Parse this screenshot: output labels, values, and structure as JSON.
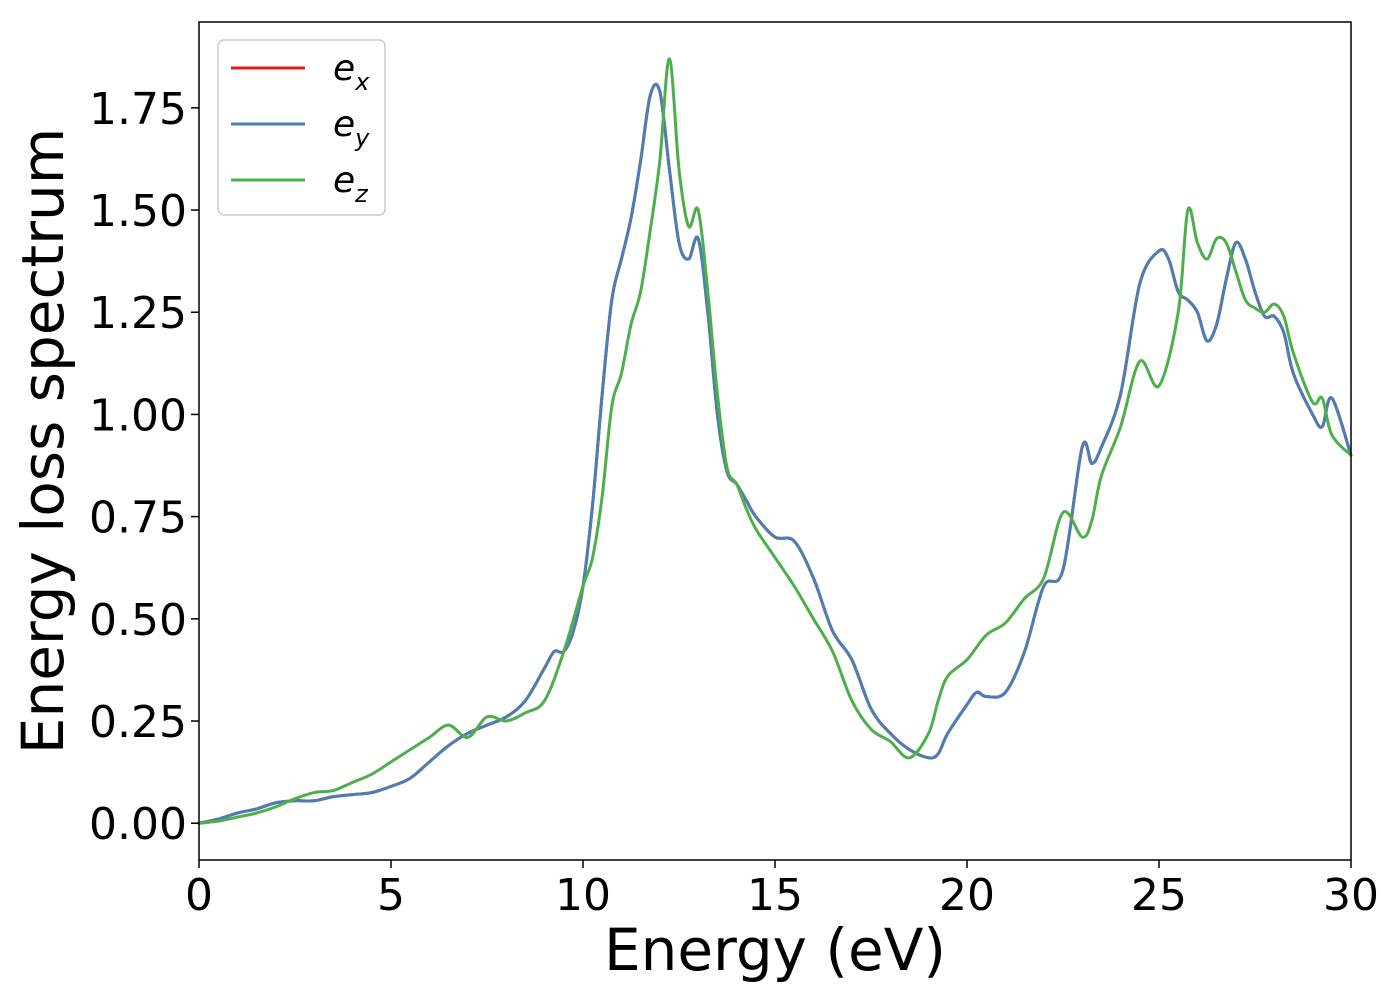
{
  "chart_data": {
    "type": "line",
    "xlabel": "Energy (eV)",
    "ylabel": "Energy loss spectrum",
    "xlim": [
      0,
      30
    ],
    "ylim": [
      -0.09,
      1.96
    ],
    "xticks": [
      0,
      5,
      10,
      15,
      20,
      25,
      30
    ],
    "xtick_labels": [
      "0",
      "5",
      "10",
      "15",
      "20",
      "25",
      "30"
    ],
    "yticks": [
      0.0,
      0.25,
      0.5,
      0.75,
      1.0,
      1.25,
      1.5,
      1.75
    ],
    "ytick_labels": [
      "0.00",
      "0.25",
      "0.50",
      "0.75",
      "1.00",
      "1.25",
      "1.50",
      "1.75"
    ],
    "grid": false,
    "legend_position": "top-left",
    "series": [
      {
        "name": "e",
        "subscript": "x",
        "color": "#e41a1c",
        "x": [
          0,
          0.5,
          1,
          1.5,
          2,
          2.5,
          3,
          3.5,
          4,
          4.5,
          5,
          5.5,
          6,
          6.5,
          7,
          7.5,
          8,
          8.5,
          9,
          9.25,
          9.5,
          9.75,
          10,
          10.25,
          10.5,
          10.75,
          11,
          11.25,
          11.5,
          11.75,
          12,
          12.25,
          12.5,
          12.75,
          13,
          13.25,
          13.5,
          13.75,
          14,
          14.25,
          14.5,
          15,
          15.5,
          16,
          16.5,
          17,
          17.5,
          18,
          18.5,
          19,
          19.25,
          19.5,
          20,
          20.25,
          20.5,
          21,
          21.5,
          22,
          22.5,
          23,
          23.25,
          23.5,
          24,
          24.5,
          25,
          25.25,
          25.5,
          25.75,
          26,
          26.25,
          26.5,
          26.75,
          27,
          27.25,
          27.5,
          27.75,
          28,
          28.25,
          28.5,
          29,
          29.25,
          29.5,
          30
        ],
        "values": [
          0.0,
          0.01,
          0.025,
          0.035,
          0.05,
          0.055,
          0.055,
          0.065,
          0.07,
          0.075,
          0.09,
          0.11,
          0.15,
          0.19,
          0.22,
          0.24,
          0.26,
          0.3,
          0.38,
          0.42,
          0.42,
          0.47,
          0.58,
          0.78,
          1.05,
          1.28,
          1.38,
          1.48,
          1.62,
          1.78,
          1.79,
          1.6,
          1.42,
          1.38,
          1.43,
          1.25,
          1.0,
          0.86,
          0.83,
          0.79,
          0.75,
          0.7,
          0.69,
          0.6,
          0.47,
          0.4,
          0.28,
          0.22,
          0.18,
          0.16,
          0.17,
          0.22,
          0.29,
          0.32,
          0.31,
          0.32,
          0.42,
          0.58,
          0.62,
          0.92,
          0.88,
          0.92,
          1.05,
          1.32,
          1.4,
          1.38,
          1.3,
          1.28,
          1.25,
          1.18,
          1.22,
          1.33,
          1.42,
          1.38,
          1.3,
          1.24,
          1.24,
          1.2,
          1.1,
          1.0,
          0.97,
          1.04,
          0.9
        ]
      },
      {
        "name": "e",
        "subscript": "y",
        "color": "#4a7fb5",
        "x": [
          0,
          0.5,
          1,
          1.5,
          2,
          2.5,
          3,
          3.5,
          4,
          4.5,
          5,
          5.5,
          6,
          6.5,
          7,
          7.5,
          8,
          8.5,
          9,
          9.25,
          9.5,
          9.75,
          10,
          10.25,
          10.5,
          10.75,
          11,
          11.25,
          11.5,
          11.75,
          12,
          12.25,
          12.5,
          12.75,
          13,
          13.25,
          13.5,
          13.75,
          14,
          14.25,
          14.5,
          15,
          15.5,
          16,
          16.5,
          17,
          17.5,
          18,
          18.5,
          19,
          19.25,
          19.5,
          20,
          20.25,
          20.5,
          21,
          21.5,
          22,
          22.5,
          23,
          23.25,
          23.5,
          24,
          24.5,
          25,
          25.25,
          25.5,
          25.75,
          26,
          26.25,
          26.5,
          26.75,
          27,
          27.25,
          27.5,
          27.75,
          28,
          28.25,
          28.5,
          29,
          29.25,
          29.5,
          30
        ],
        "values": [
          0.0,
          0.01,
          0.025,
          0.035,
          0.05,
          0.055,
          0.055,
          0.065,
          0.07,
          0.075,
          0.09,
          0.11,
          0.15,
          0.19,
          0.22,
          0.24,
          0.26,
          0.3,
          0.38,
          0.42,
          0.42,
          0.47,
          0.58,
          0.78,
          1.05,
          1.28,
          1.38,
          1.48,
          1.62,
          1.78,
          1.79,
          1.6,
          1.42,
          1.38,
          1.43,
          1.25,
          1.0,
          0.86,
          0.83,
          0.79,
          0.75,
          0.7,
          0.69,
          0.6,
          0.47,
          0.4,
          0.28,
          0.22,
          0.18,
          0.16,
          0.17,
          0.22,
          0.29,
          0.32,
          0.31,
          0.32,
          0.42,
          0.58,
          0.62,
          0.92,
          0.88,
          0.92,
          1.05,
          1.32,
          1.4,
          1.38,
          1.3,
          1.28,
          1.25,
          1.18,
          1.22,
          1.33,
          1.42,
          1.38,
          1.3,
          1.24,
          1.24,
          1.2,
          1.1,
          1.0,
          0.97,
          1.04,
          0.9
        ]
      },
      {
        "name": "e",
        "subscript": "z",
        "color": "#4daf4a",
        "x": [
          0,
          0.5,
          1,
          1.5,
          2,
          2.5,
          3,
          3.5,
          4,
          4.5,
          5,
          5.5,
          6,
          6.5,
          7,
          7.5,
          8,
          8.5,
          9,
          9.5,
          10,
          10.25,
          10.5,
          10.75,
          11,
          11.25,
          11.5,
          11.75,
          12,
          12.25,
          12.5,
          12.75,
          13,
          13.25,
          13.5,
          13.75,
          14,
          14.25,
          14.5,
          15,
          15.5,
          16,
          16.5,
          17,
          17.5,
          18,
          18.5,
          19,
          19.25,
          19.5,
          20,
          20.5,
          21,
          21.5,
          22,
          22.5,
          23,
          23.25,
          23.5,
          24,
          24.5,
          25,
          25.5,
          25.75,
          26,
          26.25,
          26.5,
          26.75,
          27,
          27.25,
          27.5,
          27.75,
          28,
          28.25,
          28.5,
          29,
          29.25,
          29.5,
          30
        ],
        "values": [
          0.0,
          0.005,
          0.015,
          0.025,
          0.04,
          0.06,
          0.075,
          0.08,
          0.1,
          0.12,
          0.15,
          0.18,
          0.21,
          0.24,
          0.21,
          0.26,
          0.25,
          0.27,
          0.3,
          0.42,
          0.58,
          0.65,
          0.8,
          1.02,
          1.1,
          1.22,
          1.3,
          1.45,
          1.62,
          1.87,
          1.6,
          1.46,
          1.5,
          1.3,
          1.05,
          0.87,
          0.83,
          0.77,
          0.72,
          0.65,
          0.58,
          0.5,
          0.42,
          0.3,
          0.23,
          0.2,
          0.16,
          0.22,
          0.3,
          0.36,
          0.4,
          0.46,
          0.49,
          0.55,
          0.6,
          0.76,
          0.7,
          0.74,
          0.85,
          0.97,
          1.13,
          1.07,
          1.25,
          1.5,
          1.42,
          1.38,
          1.43,
          1.42,
          1.35,
          1.28,
          1.26,
          1.25,
          1.27,
          1.24,
          1.15,
          1.03,
          1.04,
          0.95,
          0.9
        ]
      }
    ]
  }
}
